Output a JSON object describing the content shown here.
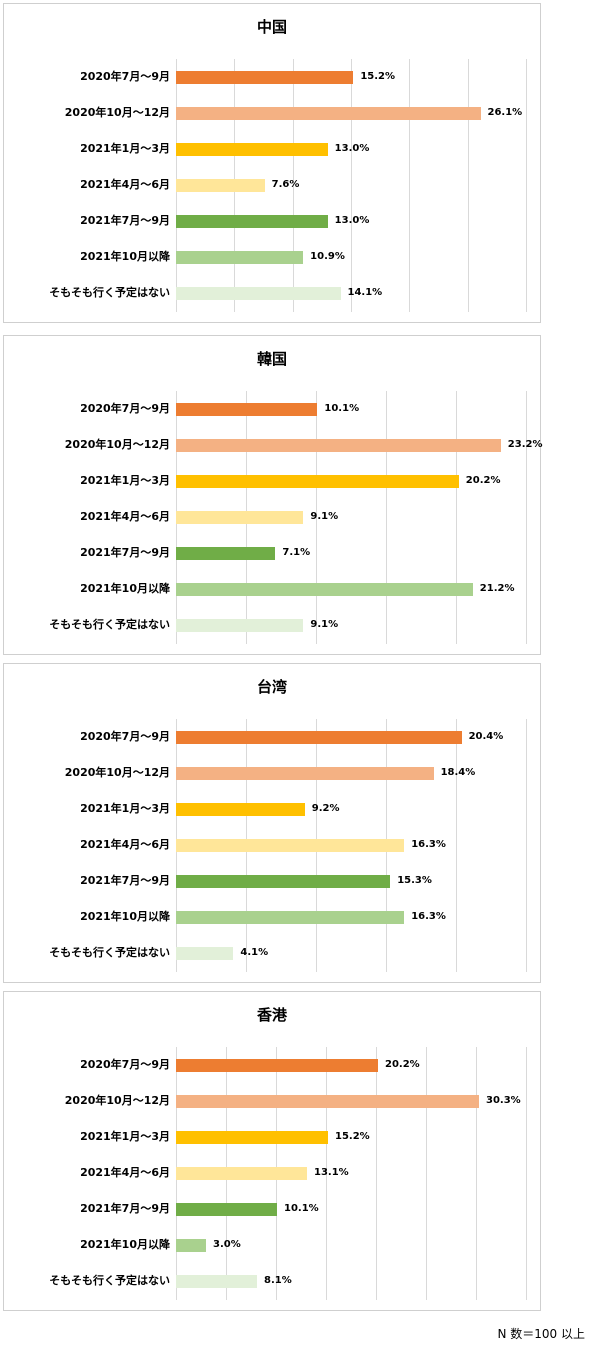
{
  "colors": [
    "#ed7d31",
    "#f4b183",
    "#ffc000",
    "#ffe699",
    "#70ad47",
    "#a9d18e",
    "#e2f0d9"
  ],
  "footnote": "N 数＝100 以上",
  "chart_data": [
    {
      "type": "bar",
      "orientation": "horizontal",
      "title": "中国",
      "categories": [
        "2020年7月～9月",
        "2020年10月～12月",
        "2021年1月～3月",
        "2021年4月～6月",
        "2021年7月～9月",
        "2021年10月以降",
        "そもそも行く予定はない"
      ],
      "values": [
        15.2,
        26.1,
        13.0,
        7.6,
        13.0,
        10.9,
        14.1
      ],
      "value_labels": [
        "15.2%",
        "26.1%",
        "13.0%",
        "7.6%",
        "13.0%",
        "10.9%",
        "14.1%"
      ],
      "xlim": [
        0,
        30
      ],
      "grid": true
    },
    {
      "type": "bar",
      "orientation": "horizontal",
      "title": "韓国",
      "categories": [
        "2020年7月～9月",
        "2020年10月～12月",
        "2021年1月～3月",
        "2021年4月～6月",
        "2021年7月～9月",
        "2021年10月以降",
        "そもそも行く予定はない"
      ],
      "values": [
        10.1,
        23.2,
        20.2,
        9.1,
        7.1,
        21.2,
        9.1
      ],
      "value_labels": [
        "10.1%",
        "23.2%",
        "20.2%",
        "9.1%",
        "7.1%",
        "21.2%",
        "9.1%"
      ],
      "xlim": [
        0,
        25
      ],
      "grid": true
    },
    {
      "type": "bar",
      "orientation": "horizontal",
      "title": "台湾",
      "categories": [
        "2020年7月～9月",
        "2020年10月～12月",
        "2021年1月～3月",
        "2021年4月～6月",
        "2021年7月～9月",
        "2021年10月以降",
        "そもそも行く予定はない"
      ],
      "values": [
        20.4,
        18.4,
        9.2,
        16.3,
        15.3,
        16.3,
        4.1
      ],
      "value_labels": [
        "20.4%",
        "18.4%",
        "9.2%",
        "16.3%",
        "15.3%",
        "16.3%",
        "4.1%"
      ],
      "xlim": [
        0,
        25
      ],
      "grid": true
    },
    {
      "type": "bar",
      "orientation": "horizontal",
      "title": "香港",
      "categories": [
        "2020年7月～9月",
        "2020年10月～12月",
        "2021年1月～3月",
        "2021年4月～6月",
        "2021年7月～9月",
        "2021年10月以降",
        "そもそも行く予定はない"
      ],
      "values": [
        20.2,
        30.3,
        15.2,
        13.1,
        10.1,
        3.0,
        8.1
      ],
      "value_labels": [
        "20.2%",
        "30.3%",
        "15.2%",
        "13.1%",
        "10.1%",
        "3.0%",
        "8.1%"
      ],
      "xlim": [
        0,
        35
      ],
      "grid": true
    }
  ]
}
